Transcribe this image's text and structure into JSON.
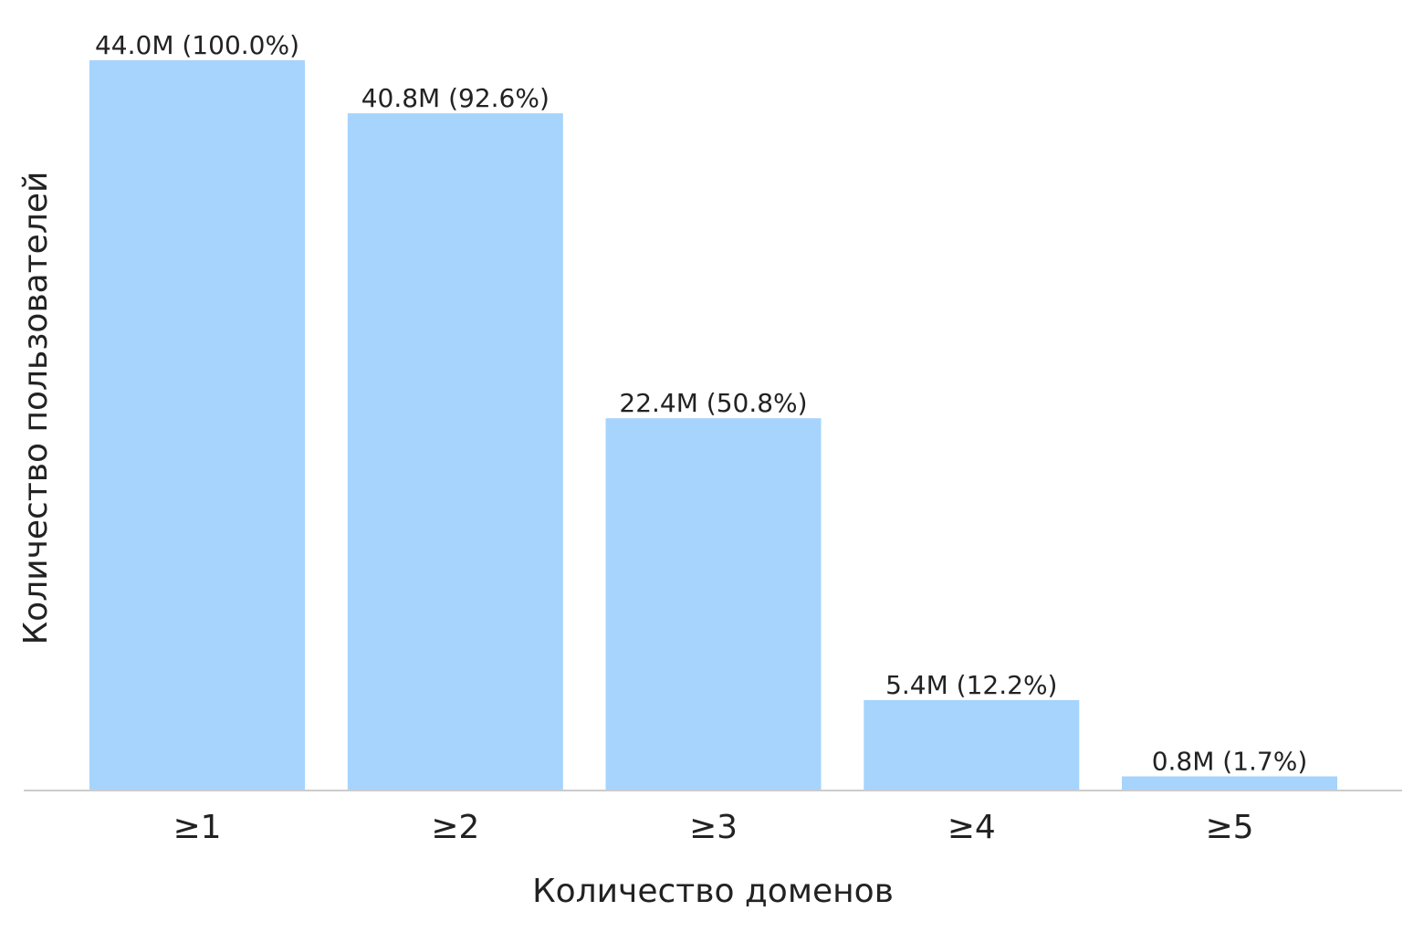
{
  "chart_data": {
    "type": "bar",
    "categories": [
      "≥1",
      "≥2",
      "≥3",
      "≥4",
      "≥5"
    ],
    "values": [
      44.0,
      40.8,
      22.4,
      5.4,
      0.8
    ],
    "value_labels": [
      "44.0M (100.0%)",
      "40.8M (92.6%)",
      "22.4M (50.8%)",
      "5.4M (12.2%)",
      "0.8M (1.7%)"
    ],
    "title": "",
    "xlabel": "Количество доменов",
    "ylabel": "Количество пользователей",
    "ylim": [
      0,
      44.0
    ],
    "grid": false,
    "legend": "none",
    "bar_color": "#a6d4fd",
    "baseline_color": "#cccccc"
  }
}
